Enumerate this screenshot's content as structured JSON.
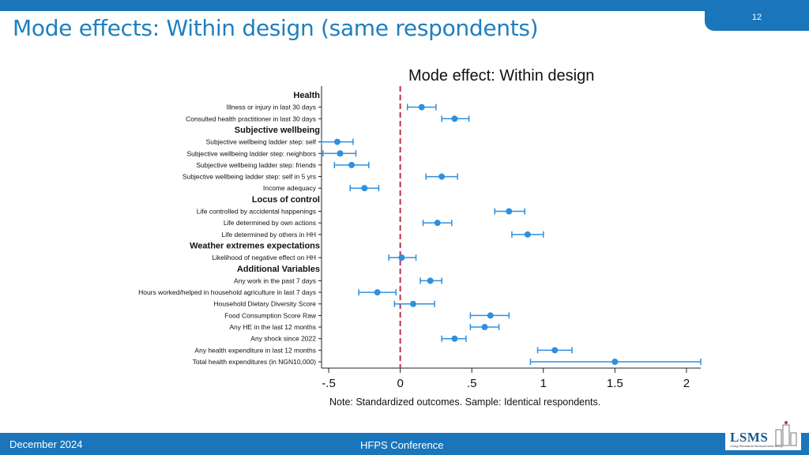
{
  "slide": {
    "title": "Mode effects: Within design (same respondents)",
    "page_number": "12",
    "footer_date": "December 2024",
    "footer_event": "HFPS Conference",
    "logo_text": "LSMS",
    "logo_subtitle": "Living Standards Measurement Study"
  },
  "colors": {
    "brand_blue": "#1a75bb",
    "title_blue": "#1f7fc0",
    "point_color": "#2f8fe0",
    "zero_line": "#c0304a"
  },
  "chart_data": {
    "type": "scatter",
    "title": "Mode effect: Within design",
    "note": "Note: Standardized outcomes. Sample: Identical respondents.",
    "xlim": [
      -0.55,
      2.1
    ],
    "xticks": [
      -0.5,
      0,
      0.5,
      1,
      1.5,
      2
    ],
    "xtick_labels": [
      "-.5",
      "0",
      ".5",
      "1",
      "1.5",
      "2"
    ],
    "reference_line": 0,
    "grid": false,
    "rows": [
      {
        "kind": "group",
        "label": "Health"
      },
      {
        "kind": "item",
        "label": "Illness or injury in last 30 days",
        "est": 0.15,
        "lo": 0.05,
        "hi": 0.25
      },
      {
        "kind": "item",
        "label": "Consulted health practitioner in last 30 days",
        "est": 0.38,
        "lo": 0.29,
        "hi": 0.48
      },
      {
        "kind": "group",
        "label": "Subjective wellbeing"
      },
      {
        "kind": "item",
        "label": "Subjective wellbeing ladder step: self",
        "est": -0.44,
        "lo": -0.55,
        "hi": -0.33
      },
      {
        "kind": "item",
        "label": "Subjective wellbeing ladder step: neighbors",
        "est": -0.42,
        "lo": -0.54,
        "hi": -0.31
      },
      {
        "kind": "item",
        "label": "Subjective wellbeing ladder step: friends",
        "est": -0.34,
        "lo": -0.46,
        "hi": -0.22
      },
      {
        "kind": "item",
        "label": "Subjective wellbeing ladder step: self in 5 yrs",
        "est": 0.29,
        "lo": 0.18,
        "hi": 0.4
      },
      {
        "kind": "item",
        "label": "Income adequacy",
        "est": -0.25,
        "lo": -0.35,
        "hi": -0.15
      },
      {
        "kind": "group",
        "label": "Locus of control"
      },
      {
        "kind": "item",
        "label": "Life controlled by accidental happenings",
        "est": 0.76,
        "lo": 0.66,
        "hi": 0.87
      },
      {
        "kind": "item",
        "label": "Life determined by own actions",
        "est": 0.26,
        "lo": 0.16,
        "hi": 0.36
      },
      {
        "kind": "item",
        "label": "Life determined by others in HH",
        "est": 0.89,
        "lo": 0.78,
        "hi": 1.0
      },
      {
        "kind": "group",
        "label": "Weather extremes expectations"
      },
      {
        "kind": "item",
        "label": "Likelihood of negative effect on HH",
        "est": 0.01,
        "lo": -0.08,
        "hi": 0.11
      },
      {
        "kind": "group",
        "label": "Additional Variables"
      },
      {
        "kind": "item",
        "label": "Any work in the past 7 days",
        "est": 0.21,
        "lo": 0.14,
        "hi": 0.29
      },
      {
        "kind": "item",
        "label": "Hours worked/helped in household agriculture in last 7 days",
        "est": -0.16,
        "lo": -0.29,
        "hi": -0.03
      },
      {
        "kind": "item",
        "label": "Household Dietary Diversity Score",
        "est": 0.09,
        "lo": -0.04,
        "hi": 0.24
      },
      {
        "kind": "item",
        "label": "Food Consumption Score Raw",
        "est": 0.63,
        "lo": 0.49,
        "hi": 0.76
      },
      {
        "kind": "item",
        "label": "Any HE in the last 12 months",
        "est": 0.59,
        "lo": 0.49,
        "hi": 0.69
      },
      {
        "kind": "item",
        "label": "Any shock since 2022",
        "est": 0.38,
        "lo": 0.29,
        "hi": 0.46
      },
      {
        "kind": "item",
        "label": "Any health expenditure in last 12 months",
        "est": 1.08,
        "lo": 0.96,
        "hi": 1.2
      },
      {
        "kind": "item",
        "label": "Total health expenditures (in NGN10,000)",
        "est": 1.5,
        "lo": 0.91,
        "hi": 2.1
      }
    ]
  }
}
